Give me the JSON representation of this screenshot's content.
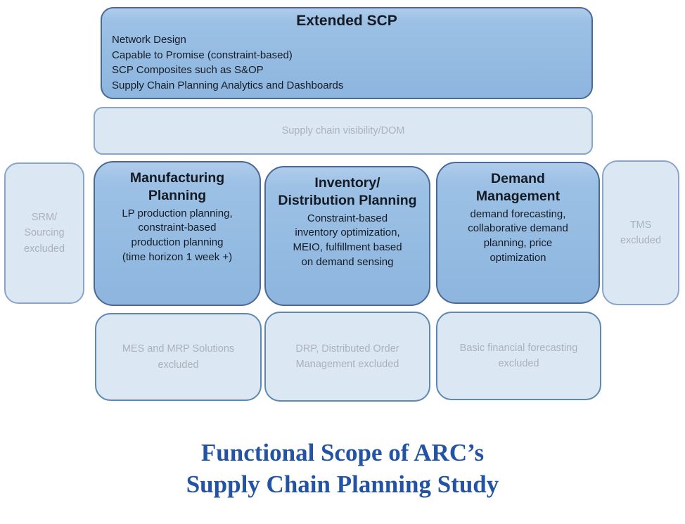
{
  "palette": {
    "included_fill": "#8db5de",
    "included_border": "#4a6994",
    "excluded_fill": "#dce7f4",
    "excluded_border_light": "#8aa5c6",
    "excluded_border_strong": "#5e88b0",
    "dark_text": "#151b26",
    "gray_text": "#aab1ba",
    "caption_blue": "#2353a4"
  },
  "extended_scp": {
    "title": "Extended SCP",
    "items": [
      "Network Design",
      "Capable to Promise (constraint-based)",
      "SCP Composites such as S&OP",
      "Supply Chain Planning Analytics and Dashboards"
    ]
  },
  "visibility": {
    "label": "Supply chain visibility/DOM"
  },
  "included": [
    {
      "title": "Manufacturing\nPlanning",
      "body": "LP production planning,\nconstraint-based\nproduction planning\n(time horizon 1 week +)"
    },
    {
      "title": "Inventory/\nDistribution Planning",
      "body": "Constraint-based\ninventory optimization,\nMEIO, fulfillment based\non demand sensing"
    },
    {
      "title": "Demand\nManagement",
      "body": "demand forecasting,\ncollaborative demand\nplanning, price\noptimization"
    }
  ],
  "excluded": {
    "srm": "SRM/\nSourcing\nexcluded",
    "tms": "TMS\nexcluded",
    "mes": "MES and MRP Solutions\nexcluded",
    "drp": "DRP, Distributed Order\nManagement excluded",
    "basic": "Basic financial forecasting\nexcluded"
  },
  "caption": {
    "text": "Functional Scope of ARC’s\nSupply Chain Planning Study"
  }
}
